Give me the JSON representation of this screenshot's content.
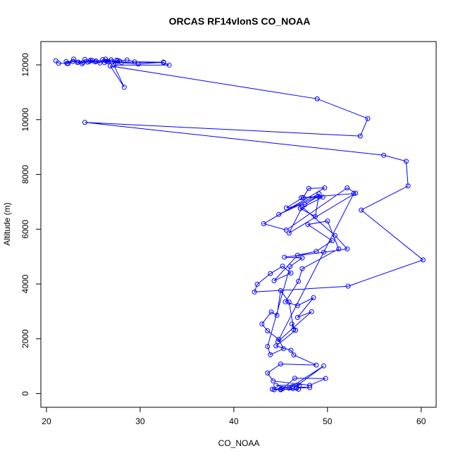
{
  "chart_data": {
    "type": "line",
    "title": "ORCAS RF14vlonS CO_NOAA",
    "xlabel": "CO_NOAA",
    "ylabel": "Altitude (m)",
    "xlim": [
      19.4,
      61.6
    ],
    "ylim": [
      -500,
      12850
    ],
    "xticks": [
      20,
      30,
      40,
      50,
      60
    ],
    "yticks": [
      0,
      2000,
      4000,
      6000,
      8000,
      10000,
      12000
    ],
    "grid": false,
    "legend": "none",
    "color": "#0000ff",
    "series": [
      {
        "marker": "open-circle",
        "line": true,
        "x": [
          21.0,
          21.3,
          22.2,
          22.9,
          23.3,
          23.8,
          24.1,
          24.6,
          24.9,
          25.2,
          25.7,
          26.0,
          26.3,
          26.6,
          26.2,
          26.9,
          27.4,
          27.8,
          28.6,
          29.4,
          32.5,
          29.8,
          28.0,
          27.5,
          27.6,
          27.0,
          26.4,
          26.9,
          25.3,
          24.7,
          24.4,
          23.9,
          23.4,
          22.8,
          22.3,
          22.1,
          32.5,
          33.1,
          27.2,
          28.3,
          26.8,
          48.9,
          54.3,
          53.5,
          24.1,
          56.0,
          58.4,
          58.6,
          53.6,
          60.2,
          52.2,
          42.2,
          42.5,
          43.9,
          45.2,
          46.1,
          44.3,
          46.8,
          48.8,
          50.5,
          47.9,
          50.0,
          51.2,
          47.3,
          46.9,
          45.5,
          46.8,
          48.5,
          46.8,
          48.3,
          44.7,
          52.8,
          47.2,
          49.5,
          47.1,
          48.7,
          49.1,
          44.8,
          49.0,
          47.6,
          45.6,
          47.4,
          48.0,
          49.7,
          43.2,
          45.6,
          52.1,
          53.0,
          45.9,
          47.3,
          50.8,
          52.1,
          49.6,
          45.4,
          47.3,
          46.0,
          43.6,
          43.9,
          45.3,
          44.8,
          43.6,
          43.0,
          44.0,
          44.6,
          45.0,
          45.9,
          46.4,
          46.2,
          46.6,
          44.5,
          46.1,
          46.4,
          48.8,
          45.0,
          43.6,
          44.2,
          48.1,
          49.8,
          46.5,
          45.2,
          44.1,
          45.0,
          46.3,
          49.6,
          45.9,
          44.5,
          47.0,
          46.7,
          48.1,
          46.3,
          45.0,
          44.3,
          46.9
        ],
        "y": [
          12150,
          12060,
          12050,
          12210,
          12090,
          12040,
          12200,
          12130,
          12160,
          12110,
          12070,
          12190,
          12210,
          12120,
          12080,
          12180,
          12050,
          12140,
          12180,
          12110,
          12100,
          12030,
          12080,
          12170,
          12150,
          12110,
          12130,
          12180,
          12140,
          12170,
          12100,
          12090,
          12100,
          12120,
          12050,
          12120,
          12080,
          11990,
          11990,
          11180,
          11960,
          10760,
          10040,
          9400,
          9900,
          8700,
          8480,
          7580,
          6700,
          4880,
          3920,
          3710,
          3990,
          4380,
          4650,
          4400,
          4120,
          5050,
          5190,
          5580,
          6170,
          6300,
          5280,
          4560,
          4100,
          3350,
          3210,
          3500,
          2780,
          2990,
          1900,
          7300,
          7150,
          7170,
          6760,
          6460,
          7290,
          6540,
          7200,
          6900,
          6780,
          7160,
          7490,
          7510,
          6200,
          5970,
          7510,
          7320,
          5860,
          6810,
          5770,
          5280,
          5160,
          4980,
          4950,
          4640,
          1720,
          1420,
          1640,
          1980,
          2290,
          2540,
          2980,
          2860,
          3760,
          3340,
          2340,
          2540,
          2310,
          1740,
          1580,
          1410,
          1040,
          1080,
          750,
          460,
          300,
          550,
          560,
          180,
          160,
          140,
          180,
          1010,
          200,
          300,
          300,
          200,
          220,
          260,
          160,
          140,
          160
        ]
      }
    ]
  }
}
